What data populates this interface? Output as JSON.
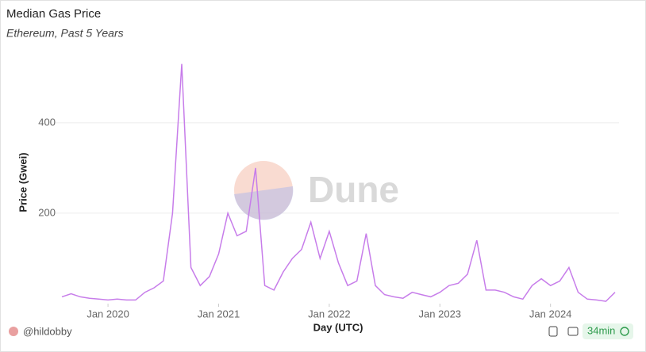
{
  "chart_data": {
    "type": "line",
    "title": "Median Gas Price",
    "subtitle": "Ethereum, Past 5 Years",
    "x_label": "Day (UTC)",
    "y_label": "Price (Gwei)",
    "x": [
      "2019-08",
      "2019-09",
      "2019-10",
      "2019-11",
      "2019-12",
      "2020-01",
      "2020-02",
      "2020-03",
      "2020-04",
      "2020-05",
      "2020-06",
      "2020-07",
      "2020-08",
      "2020-09",
      "2020-10",
      "2020-11",
      "2020-12",
      "2021-01",
      "2021-02",
      "2021-03",
      "2021-04",
      "2021-05",
      "2021-06",
      "2021-07",
      "2021-08",
      "2021-09",
      "2021-10",
      "2021-11",
      "2021-12",
      "2022-01",
      "2022-02",
      "2022-03",
      "2022-04",
      "2022-05",
      "2022-06",
      "2022-07",
      "2022-08",
      "2022-09",
      "2022-10",
      "2022-11",
      "2022-12",
      "2023-01",
      "2023-02",
      "2023-03",
      "2023-04",
      "2023-05",
      "2023-06",
      "2023-07",
      "2023-08",
      "2023-09",
      "2023-10",
      "2023-11",
      "2023-12",
      "2024-01",
      "2024-02",
      "2024-03",
      "2024-04",
      "2024-05",
      "2024-06",
      "2024-07",
      "2024-08"
    ],
    "series": [
      {
        "name": "Median Gas Price",
        "color": "#c77dea",
        "values": [
          15,
          22,
          15,
          12,
          10,
          8,
          10,
          8,
          8,
          25,
          35,
          50,
          200,
          530,
          80,
          40,
          60,
          110,
          200,
          150,
          160,
          300,
          40,
          30,
          70,
          100,
          120,
          180,
          100,
          160,
          90,
          40,
          50,
          155,
          40,
          20,
          15,
          12,
          25,
          20,
          15,
          25,
          40,
          45,
          65,
          140,
          30,
          30,
          25,
          15,
          10,
          40,
          55,
          40,
          50,
          80,
          25,
          10,
          8,
          5,
          25
        ]
      }
    ],
    "ylim": [
      0,
      540
    ],
    "yticks": [
      200,
      400
    ],
    "grid": true,
    "xticks": [
      {
        "value": "2020-01",
        "label": "Jan 2020"
      },
      {
        "value": "2021-01",
        "label": "Jan 2021"
      },
      {
        "value": "2022-01",
        "label": "Jan 2022"
      },
      {
        "value": "2023-01",
        "label": "Jan 2023"
      },
      {
        "value": "2024-01",
        "label": "Jan 2024"
      }
    ]
  },
  "watermark": "Dune",
  "footer": {
    "author": "@hildobby",
    "refresh": "34min"
  }
}
